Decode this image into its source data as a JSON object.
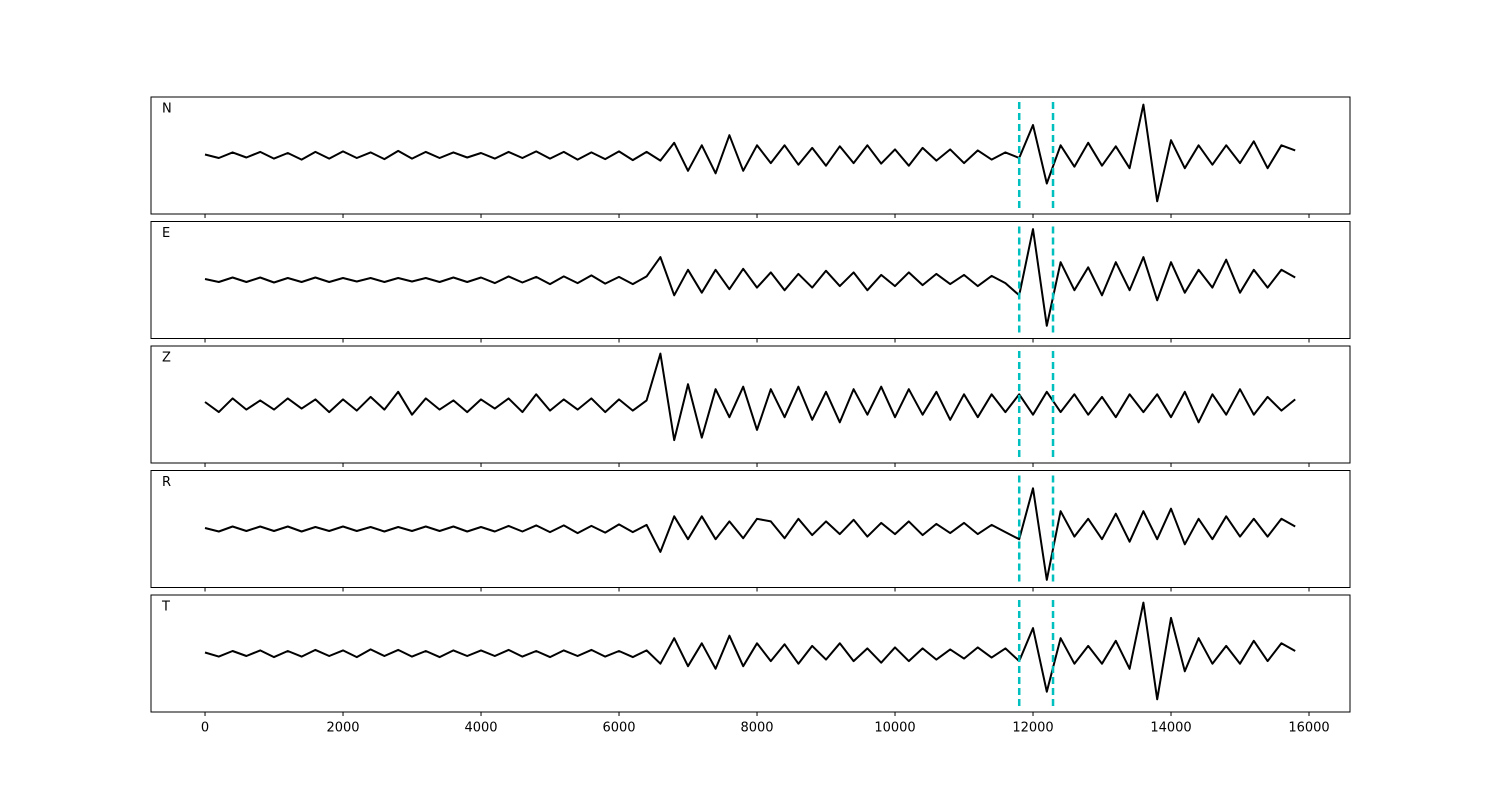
{
  "chart_data": [
    {
      "type": "line",
      "label": "N",
      "color": "#000000",
      "xlim": [
        -783,
        16594
      ],
      "ylim": [
        -1.15,
        1.15
      ],
      "xticks": [
        0,
        2000,
        4000,
        6000,
        8000,
        10000,
        12000,
        14000,
        16000
      ],
      "tick_labels": false,
      "vlines": [
        11800,
        12290
      ],
      "vline_color": "#00bfbf",
      "x": [
        0,
        200,
        400,
        600,
        800,
        1000,
        1200,
        1400,
        1600,
        1800,
        2000,
        2200,
        2400,
        2600,
        2800,
        3000,
        3200,
        3400,
        3600,
        3800,
        4000,
        4200,
        4400,
        4600,
        4800,
        5000,
        5200,
        5400,
        5600,
        5800,
        6000,
        6200,
        6400,
        6600,
        6800,
        7000,
        7200,
        7400,
        7600,
        7800,
        8000,
        8200,
        8400,
        8600,
        8800,
        9000,
        9200,
        9400,
        9600,
        9800,
        10000,
        10200,
        10400,
        10600,
        10800,
        11000,
        11200,
        11400,
        11600,
        11800,
        12000,
        12200,
        12400,
        12600,
        12800,
        13000,
        13200,
        13400,
        13600,
        13800,
        14000,
        14200,
        14400,
        14600,
        14800,
        15000,
        15200,
        15400,
        15600,
        15800
      ],
      "values": [
        0.02,
        -0.05,
        0.06,
        -0.04,
        0.07,
        -0.06,
        0.05,
        -0.08,
        0.07,
        -0.06,
        0.08,
        -0.05,
        0.06,
        -0.07,
        0.09,
        -0.06,
        0.07,
        -0.05,
        0.06,
        -0.04,
        0.05,
        -0.06,
        0.07,
        -0.05,
        0.08,
        -0.06,
        0.07,
        -0.08,
        0.06,
        -0.07,
        0.08,
        -0.09,
        0.07,
        -0.1,
        0.25,
        -0.3,
        0.2,
        -0.35,
        0.4,
        -0.3,
        0.2,
        -0.15,
        0.2,
        -0.18,
        0.15,
        -0.2,
        0.18,
        -0.15,
        0.2,
        -0.16,
        0.12,
        -0.2,
        0.15,
        -0.1,
        0.12,
        -0.15,
        0.1,
        -0.08,
        0.06,
        -0.05,
        0.6,
        -0.55,
        0.2,
        -0.22,
        0.25,
        -0.2,
        0.18,
        -0.25,
        1.0,
        -0.9,
        0.3,
        -0.25,
        0.2,
        -0.18,
        0.2,
        -0.15,
        0.28,
        -0.25,
        0.2,
        0.1
      ]
    },
    {
      "type": "line",
      "label": "E",
      "color": "#000000",
      "xlim": [
        -783,
        16594
      ],
      "ylim": [
        -1.15,
        1.15
      ],
      "xticks": [
        0,
        2000,
        4000,
        6000,
        8000,
        10000,
        12000,
        14000,
        16000
      ],
      "tick_labels": false,
      "vlines": [
        11800,
        12290
      ],
      "vline_color": "#00bfbf",
      "x": [
        0,
        200,
        400,
        600,
        800,
        1000,
        1200,
        1400,
        1600,
        1800,
        2000,
        2200,
        2400,
        2600,
        2800,
        3000,
        3200,
        3400,
        3600,
        3800,
        4000,
        4200,
        4400,
        4600,
        4800,
        5000,
        5200,
        5400,
        5600,
        5800,
        6000,
        6200,
        6400,
        6600,
        6800,
        7000,
        7200,
        7400,
        7600,
        7800,
        8000,
        8200,
        8400,
        8600,
        8800,
        9000,
        9200,
        9400,
        9600,
        9800,
        10000,
        10200,
        10400,
        10600,
        10800,
        11000,
        11200,
        11400,
        11600,
        11800,
        12000,
        12200,
        12400,
        12600,
        12800,
        13000,
        13200,
        13400,
        13600,
        13800,
        14000,
        14200,
        14400,
        14600,
        14800,
        15000,
        15200,
        15400,
        15600,
        15800
      ],
      "values": [
        0.02,
        -0.04,
        0.05,
        -0.04,
        0.05,
        -0.05,
        0.04,
        -0.04,
        0.05,
        -0.04,
        0.04,
        -0.03,
        0.04,
        -0.04,
        0.04,
        -0.03,
        0.04,
        -0.04,
        0.05,
        -0.04,
        0.05,
        -0.06,
        0.07,
        -0.05,
        0.06,
        -0.08,
        0.07,
        -0.06,
        0.09,
        -0.07,
        0.06,
        -0.08,
        0.07,
        0.45,
        -0.3,
        0.2,
        -0.25,
        0.2,
        -0.18,
        0.22,
        -0.15,
        0.15,
        -0.2,
        0.12,
        -0.15,
        0.18,
        -0.12,
        0.15,
        -0.2,
        0.1,
        -0.12,
        0.15,
        -0.1,
        0.12,
        -0.08,
        0.1,
        -0.12,
        0.08,
        -0.06,
        -0.3,
        1.0,
        -0.9,
        0.35,
        -0.2,
        0.25,
        -0.3,
        0.35,
        -0.2,
        0.45,
        -0.4,
        0.35,
        -0.25,
        0.2,
        -0.15,
        0.4,
        -0.25,
        0.2,
        -0.15,
        0.2,
        0.05
      ]
    },
    {
      "type": "line",
      "label": "Z",
      "color": "#000000",
      "xlim": [
        -783,
        16594
      ],
      "ylim": [
        -1.15,
        1.15
      ],
      "xticks": [
        0,
        2000,
        4000,
        6000,
        8000,
        10000,
        12000,
        14000,
        16000
      ],
      "tick_labels": false,
      "vlines": [
        11800,
        12290
      ],
      "vline_color": "#00bfbf",
      "x": [
        0,
        200,
        400,
        600,
        800,
        1000,
        1200,
        1400,
        1600,
        1800,
        2000,
        2200,
        2400,
        2600,
        2800,
        3000,
        3200,
        3400,
        3600,
        3800,
        4000,
        4200,
        4400,
        4600,
        4800,
        5000,
        5200,
        5400,
        5600,
        5800,
        6000,
        6200,
        6400,
        6600,
        6800,
        7000,
        7200,
        7400,
        7600,
        7800,
        8000,
        8200,
        8400,
        8600,
        8800,
        9000,
        9200,
        9400,
        9600,
        9800,
        10000,
        10200,
        10400,
        10600,
        10800,
        11000,
        11200,
        11400,
        11600,
        11800,
        12000,
        12200,
        12400,
        12600,
        12800,
        13000,
        13200,
        13400,
        13600,
        13800,
        14000,
        14200,
        14400,
        14600,
        14800,
        15000,
        15200,
        15400,
        15600,
        15800
      ],
      "values": [
        0.05,
        -0.15,
        0.12,
        -0.1,
        0.08,
        -0.1,
        0.12,
        -0.08,
        0.1,
        -0.15,
        0.1,
        -0.12,
        0.15,
        -0.1,
        0.25,
        -0.2,
        0.12,
        -0.1,
        0.08,
        -0.15,
        0.1,
        -0.08,
        0.12,
        -0.15,
        0.2,
        -0.12,
        0.1,
        -0.1,
        0.12,
        -0.15,
        0.1,
        -0.12,
        0.08,
        1.0,
        -0.7,
        0.4,
        -0.65,
        0.3,
        -0.25,
        0.35,
        -0.5,
        0.3,
        -0.25,
        0.35,
        -0.3,
        0.25,
        -0.35,
        0.3,
        -0.2,
        0.35,
        -0.25,
        0.3,
        -0.2,
        0.25,
        -0.3,
        0.2,
        -0.25,
        0.2,
        -0.15,
        0.2,
        -0.2,
        0.25,
        -0.15,
        0.2,
        -0.2,
        0.15,
        -0.25,
        0.2,
        -0.15,
        0.2,
        -0.25,
        0.25,
        -0.35,
        0.2,
        -0.2,
        0.3,
        -0.2,
        0.15,
        -0.12,
        0.1
      ]
    },
    {
      "type": "line",
      "label": "R",
      "color": "#000000",
      "xlim": [
        -783,
        16594
      ],
      "ylim": [
        -1.15,
        1.15
      ],
      "xticks": [
        0,
        2000,
        4000,
        6000,
        8000,
        10000,
        12000,
        14000,
        16000
      ],
      "tick_labels": false,
      "vlines": [
        11800,
        12290
      ],
      "vline_color": "#00bfbf",
      "x": [
        0,
        200,
        400,
        600,
        800,
        1000,
        1200,
        1400,
        1600,
        1800,
        2000,
        2200,
        2400,
        2600,
        2800,
        3000,
        3200,
        3400,
        3600,
        3800,
        4000,
        4200,
        4400,
        4600,
        4800,
        5000,
        5200,
        5400,
        5600,
        5800,
        6000,
        6200,
        6400,
        6600,
        6800,
        7000,
        7200,
        7400,
        7600,
        7800,
        8000,
        8200,
        8400,
        8600,
        8800,
        9000,
        9200,
        9400,
        9600,
        9800,
        10000,
        10200,
        10400,
        10600,
        10800,
        11000,
        11200,
        11400,
        11600,
        11800,
        12000,
        12200,
        12400,
        12600,
        12800,
        13000,
        13200,
        13400,
        13600,
        13800,
        14000,
        14200,
        14400,
        14600,
        14800,
        15000,
        15200,
        15400,
        15600,
        15800
      ],
      "values": [
        0.02,
        -0.05,
        0.05,
        -0.04,
        0.05,
        -0.04,
        0.05,
        -0.05,
        0.04,
        -0.04,
        0.05,
        -0.04,
        0.04,
        -0.05,
        0.04,
        -0.04,
        0.05,
        -0.04,
        0.05,
        -0.05,
        0.04,
        -0.05,
        0.06,
        -0.05,
        0.07,
        -0.06,
        0.07,
        -0.08,
        0.06,
        -0.07,
        0.09,
        -0.06,
        0.08,
        -0.45,
        0.25,
        -0.2,
        0.25,
        -0.2,
        0.15,
        -0.18,
        0.2,
        0.15,
        -0.18,
        0.2,
        -0.12,
        0.15,
        -0.1,
        0.18,
        -0.15,
        0.12,
        -0.1,
        0.15,
        -0.12,
        0.1,
        -0.08,
        0.12,
        -0.1,
        0.08,
        -0.06,
        -0.2,
        0.8,
        -1.0,
        0.35,
        -0.15,
        0.2,
        -0.2,
        0.3,
        -0.25,
        0.35,
        -0.2,
        0.4,
        -0.3,
        0.2,
        -0.2,
        0.25,
        -0.15,
        0.2,
        -0.15,
        0.2,
        0.05
      ]
    },
    {
      "type": "line",
      "label": "T",
      "color": "#000000",
      "xlim": [
        -783,
        16594
      ],
      "ylim": [
        -1.15,
        1.15
      ],
      "xticks": [
        0,
        2000,
        4000,
        6000,
        8000,
        10000,
        12000,
        14000,
        16000
      ],
      "tick_labels": true,
      "vlines": [
        11800,
        12290
      ],
      "vline_color": "#00bfbf",
      "x": [
        0,
        200,
        400,
        600,
        800,
        1000,
        1200,
        1400,
        1600,
        1800,
        2000,
        2200,
        2400,
        2600,
        2800,
        3000,
        3200,
        3400,
        3600,
        3800,
        4000,
        4200,
        4400,
        4600,
        4800,
        5000,
        5200,
        5400,
        5600,
        5800,
        6000,
        6200,
        6400,
        6600,
        6800,
        7000,
        7200,
        7400,
        7600,
        7800,
        8000,
        8200,
        8400,
        8600,
        8800,
        9000,
        9200,
        9400,
        9600,
        9800,
        10000,
        10200,
        10400,
        10600,
        10800,
        11000,
        11200,
        11400,
        11600,
        11800,
        12000,
        12200,
        12400,
        12600,
        12800,
        13000,
        13200,
        13400,
        13600,
        13800,
        14000,
        14200,
        14400,
        14600,
        14800,
        15000,
        15200,
        15400,
        15600,
        15800
      ],
      "values": [
        0.02,
        -0.06,
        0.05,
        -0.05,
        0.06,
        -0.07,
        0.05,
        -0.06,
        0.07,
        -0.05,
        0.06,
        -0.07,
        0.08,
        -0.05,
        0.07,
        -0.06,
        0.05,
        -0.07,
        0.06,
        -0.05,
        0.06,
        -0.05,
        0.07,
        -0.06,
        0.05,
        -0.07,
        0.06,
        -0.05,
        0.07,
        -0.06,
        0.05,
        -0.07,
        0.06,
        -0.2,
        0.3,
        -0.25,
        0.2,
        -0.3,
        0.35,
        -0.25,
        0.2,
        -0.15,
        0.18,
        -0.2,
        0.15,
        -0.12,
        0.2,
        -0.15,
        0.1,
        -0.18,
        0.12,
        -0.15,
        0.1,
        -0.12,
        0.08,
        -0.1,
        0.12,
        -0.08,
        0.1,
        -0.15,
        0.5,
        -0.75,
        0.3,
        -0.2,
        0.15,
        -0.2,
        0.25,
        -0.3,
        1.0,
        -0.9,
        0.7,
        -0.35,
        0.3,
        -0.2,
        0.15,
        -0.2,
        0.25,
        -0.15,
        0.2,
        0.05
      ]
    }
  ]
}
